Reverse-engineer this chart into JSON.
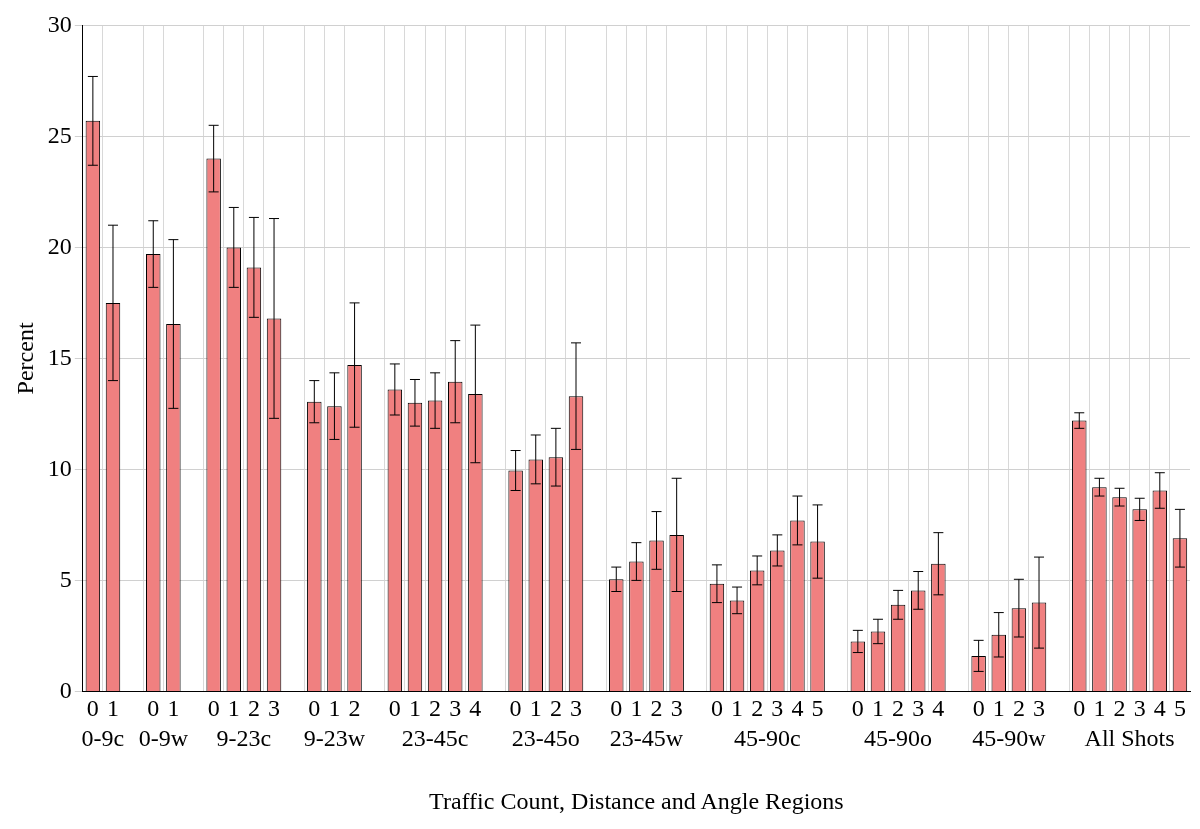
{
  "chart_data": {
    "type": "bar",
    "xlabel": "Traffic Count, Distance and Angle Regions",
    "ylabel": "Percent",
    "categories": [
      "0",
      "1",
      null,
      "0",
      "1",
      null,
      "0",
      "1",
      "2",
      "3",
      null,
      "0",
      "1",
      "2",
      null,
      "0",
      "1",
      "2",
      "3",
      "4",
      null,
      "0",
      "1",
      "2",
      "3",
      null,
      "0",
      "1",
      "2",
      "3",
      null,
      "0",
      "1",
      "2",
      "3",
      "4",
      "5",
      null,
      "0",
      "1",
      "2",
      "3",
      "4",
      null,
      "0",
      "1",
      "2",
      "3",
      null,
      "0",
      "1",
      "2",
      "3",
      "4",
      "5"
    ],
    "values": [
      25.7,
      17.5,
      null,
      19.7,
      16.55,
      null,
      24.0,
      20.0,
      19.1,
      16.8,
      null,
      13.05,
      12.85,
      14.7,
      null,
      13.6,
      13.0,
      13.1,
      13.95,
      13.4,
      null,
      9.95,
      10.45,
      10.55,
      13.3,
      null,
      5.05,
      5.85,
      6.8,
      7.05,
      null,
      4.85,
      4.1,
      5.45,
      6.35,
      7.7,
      6.75,
      null,
      2.25,
      2.7,
      3.9,
      4.55,
      5.75,
      null,
      1.6,
      2.55,
      3.75,
      4.0,
      null,
      12.2,
      9.2,
      8.75,
      8.2,
      9.05,
      6.9
    ],
    "errors": [
      2.0,
      3.5,
      null,
      1.5,
      3.8,
      null,
      1.5,
      1.8,
      2.25,
      4.5,
      null,
      0.95,
      1.5,
      2.8,
      null,
      1.15,
      1.05,
      1.25,
      1.85,
      3.1,
      null,
      0.9,
      1.1,
      1.3,
      2.4,
      null,
      0.55,
      0.85,
      1.3,
      2.55,
      null,
      0.85,
      0.6,
      0.65,
      0.7,
      1.1,
      1.65,
      null,
      0.5,
      0.55,
      0.65,
      0.85,
      1.4,
      null,
      0.7,
      1.0,
      1.3,
      2.05,
      null,
      0.35,
      0.4,
      0.4,
      0.5,
      0.8,
      1.3
    ],
    "color": "#f08080",
    "annotations": [
      "0-9c",
      "0-9w",
      "9-23c",
      "9-23w",
      "23-45c",
      "23-45o",
      "23-45w",
      "45-90c",
      "45-90o",
      "45-90w",
      "All Shots"
    ],
    "ylim": [
      0,
      30
    ],
    "yticks": [
      0,
      5,
      10,
      15,
      20,
      25,
      30
    ],
    "grid": true,
    "legend": false
  }
}
